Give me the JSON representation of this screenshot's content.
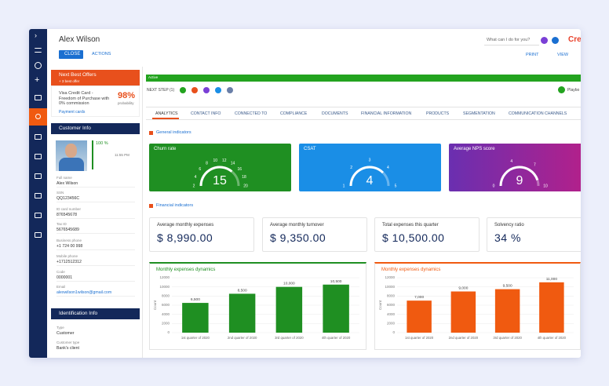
{
  "header": {
    "name": "Alex Wilson",
    "close": "CLOSE",
    "actions": "ACTIONS",
    "search": "What can I do for you?",
    "logo": "Cre",
    "print": "PRINT",
    "view": "VIEW"
  },
  "offers": {
    "title": "Next Best Offers",
    "subtitle": "+ 3 best offer",
    "offer": "Visa Credit Card - Freedom of Purchase with 0% commission",
    "probability": "98%",
    "probability_label": "probability",
    "category": "Payment cards"
  },
  "customer_info": {
    "title": "Customer Info",
    "completeness": "100 %",
    "time": "11:55 PM",
    "fields": [
      {
        "label": "Full name",
        "value": "Alex Wilson"
      },
      {
        "label": "SSN",
        "value": "QQ123456C"
      },
      {
        "label": "ID card number",
        "value": "876545678"
      },
      {
        "label": "Tax ID",
        "value": "5676545689"
      },
      {
        "label": "Business phone",
        "value": "+1 724 00 998"
      },
      {
        "label": "Mobile phone",
        "value": "+1712512312"
      },
      {
        "label": "Code",
        "value": "0000001"
      },
      {
        "label": "Email",
        "value": "alexwilson1wilson@gmail.com"
      }
    ]
  },
  "identification_info": {
    "title": "Identification Info",
    "fields": [
      {
        "label": "Type",
        "value": "Customer"
      },
      {
        "label": "Customer type",
        "value": "Bank's client"
      }
    ]
  },
  "status": {
    "stage": "Active",
    "next_step": "NEXT STEP (1)",
    "playbook": "Playbo"
  },
  "tabs": [
    "ANALYTICS",
    "CONTACT INFO",
    "CONNECTED TO",
    "COMPLIANCE",
    "DOCUMENTS",
    "FINANCIAL INFORMATION",
    "PRODUCTS",
    "SEGMENTATION",
    "COMMUNICATION CHANNELS"
  ],
  "sections": {
    "general": "General indicators",
    "financial": "Financial indicators"
  },
  "gauges": [
    {
      "title": "Churn rate",
      "value": 15,
      "ticks": [
        2,
        4,
        6,
        8,
        10,
        12,
        14,
        16,
        18,
        20
      ],
      "color": "#1f8f22"
    },
    {
      "title": "CSAT",
      "value": 4,
      "ticks": [
        1,
        2,
        3,
        4,
        5
      ],
      "color": "#1a8ee6"
    },
    {
      "title": "Average NPS score",
      "value": 9,
      "ticks": [
        0,
        4,
        7,
        10
      ],
      "color": "#8e2aa6"
    }
  ],
  "metrics": [
    {
      "label": "Average monthly expenses",
      "value": "$ 8,990.00"
    },
    {
      "label": "Average monthly turnover",
      "value": "$ 9,350.00"
    },
    {
      "label": "Total expenses this quarter",
      "value": "$ 10,500.00"
    },
    {
      "label": "Solvency ratio",
      "value": "34 %"
    }
  ],
  "charts": [
    {
      "type": "bar",
      "title": "Monthly expenses dynamics",
      "y_label": "Count",
      "categories": [
        "1st quarter of 2020",
        "2nd quarter of 2020",
        "3rd quarter of 2020",
        "4th quarter of 2020"
      ],
      "values": [
        6500,
        8500,
        10000,
        10500
      ],
      "value_labels": [
        "6,500",
        "8,500",
        "10,000",
        "10,500"
      ],
      "ylim": [
        0,
        12000
      ],
      "yticks": [
        0,
        2000,
        4000,
        6000,
        8000,
        10000,
        12000
      ],
      "color": "#1f8f22"
    },
    {
      "type": "bar",
      "title": "Monthly expenses dynamics",
      "y_label": "Count",
      "categories": [
        "1st quarter of 2020",
        "2nd quarter of 2020",
        "3rd quarter of 2020",
        "4th quarter of 2020"
      ],
      "values": [
        7000,
        9000,
        9500,
        11000
      ],
      "value_labels": [
        "7,000",
        "9,000",
        "9,500",
        "11,000"
      ],
      "ylim": [
        0,
        12000
      ],
      "yticks": [
        0,
        2000,
        4000,
        6000,
        8000,
        10000,
        12000
      ],
      "color": "#f05a10"
    }
  ]
}
